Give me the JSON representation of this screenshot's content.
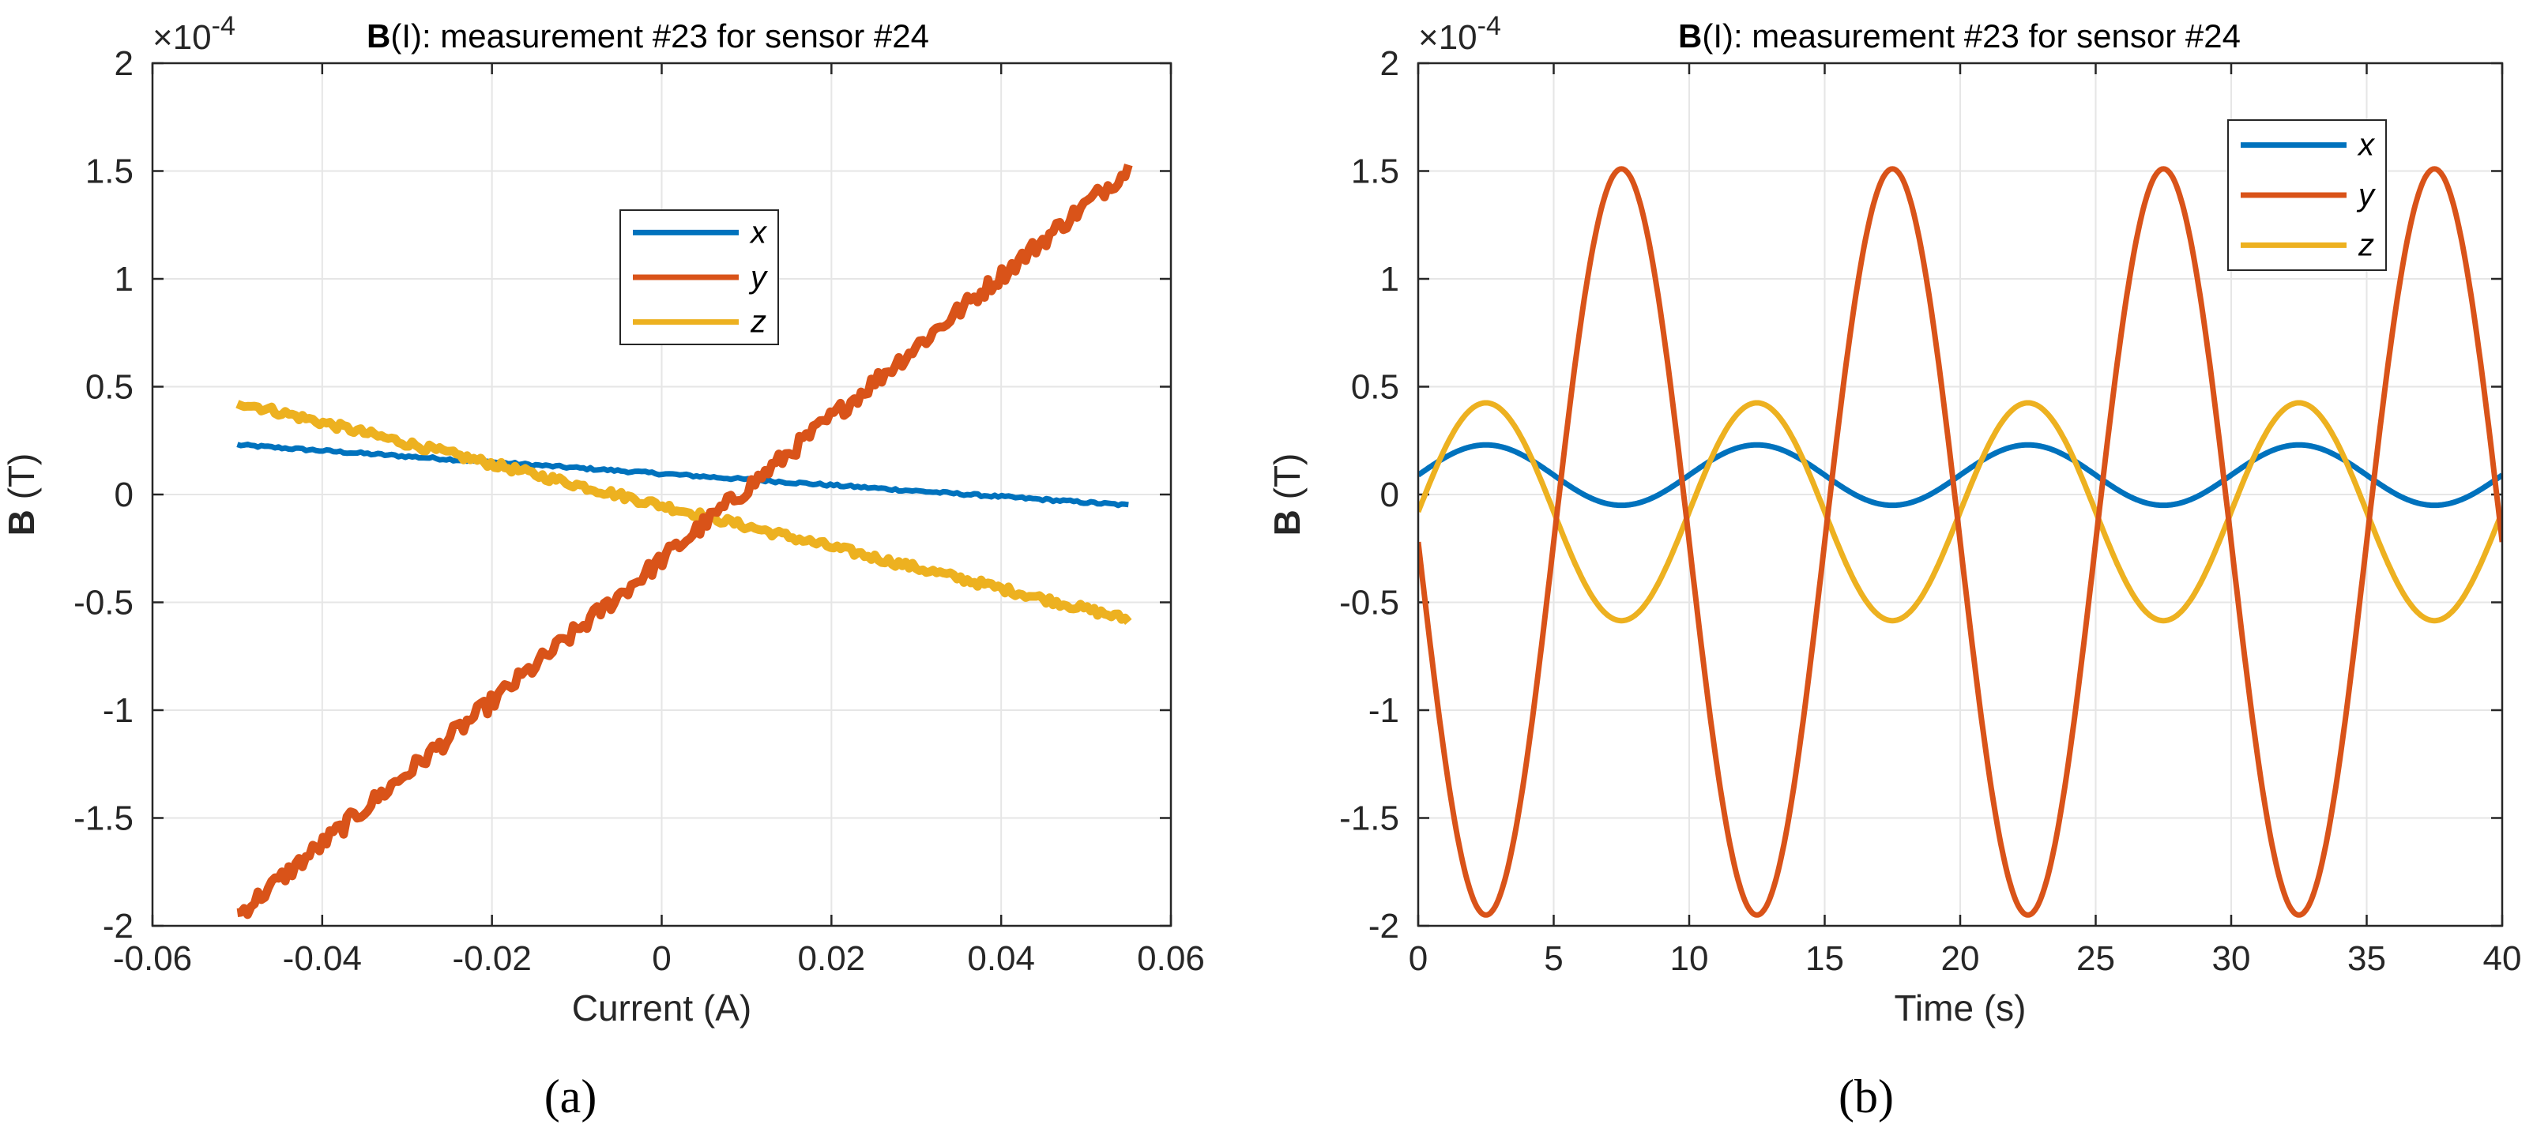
{
  "colors": {
    "x": "#0072BD",
    "y": "#D95319",
    "z": "#EDB120"
  },
  "panels": [
    "(a)",
    "(b)"
  ],
  "chart_data": [
    {
      "type": "line",
      "title_bold": "B",
      "title": "(I): measurement #23 for sensor #24",
      "xlabel": "Current (A)",
      "ylabel_bold": "B",
      "ylabel": " (T)",
      "multiplier": "×10",
      "multiplier_exp": "-4",
      "xlim": [
        -0.06,
        0.06
      ],
      "ylim": [
        -2,
        2
      ],
      "xticks": [
        -0.06,
        -0.04,
        -0.02,
        0,
        0.02,
        0.04,
        0.06
      ],
      "xtick_labels": [
        "-0.06",
        "-0.04",
        "-0.02",
        "0",
        "0.02",
        "0.04",
        "0.06"
      ],
      "yticks": [
        -2,
        -1.5,
        -1,
        -0.5,
        0,
        0.5,
        1,
        1.5,
        2
      ],
      "ytick_labels": [
        "-2",
        "-1.5",
        "-1",
        "-0.5",
        "0",
        "0.5",
        "1",
        "1.5",
        "2"
      ],
      "grid": true,
      "legend_position": "upper-middle",
      "series": [
        {
          "name": "x",
          "x_range": [
            -0.05,
            0.055
          ],
          "y_range": [
            0.23,
            -0.05
          ]
        },
        {
          "name": "y",
          "x_range": [
            -0.05,
            0.055
          ],
          "y_range": [
            -1.95,
            1.51
          ]
        },
        {
          "name": "z",
          "x_range": [
            -0.05,
            0.055
          ],
          "y_range": [
            0.43,
            -0.58
          ]
        }
      ]
    },
    {
      "type": "line",
      "title_bold": "B",
      "title": "(I): measurement #23 for sensor #24",
      "xlabel": "Time (s)",
      "ylabel_bold": "B",
      "ylabel": " (T)",
      "multiplier": "×10",
      "multiplier_exp": "-4",
      "xlim": [
        0,
        40
      ],
      "ylim": [
        -2,
        2
      ],
      "xticks": [
        0,
        5,
        10,
        15,
        20,
        25,
        30,
        35,
        40
      ],
      "xtick_labels": [
        "0",
        "5",
        "10",
        "15",
        "20",
        "25",
        "30",
        "35",
        "40"
      ],
      "yticks": [
        -2,
        -1.5,
        -1,
        -0.5,
        0,
        0.5,
        1,
        1.5,
        2
      ],
      "ytick_labels": [
        "-2",
        "-1.5",
        "-1",
        "-0.5",
        "0",
        "0.5",
        "1",
        "1.5",
        "2"
      ],
      "grid": true,
      "legend_position": "top-right",
      "period_s": 10,
      "series": [
        {
          "name": "x",
          "offset": 0.09,
          "amplitude": 0.14,
          "peak_time": 2.5
        },
        {
          "name": "y",
          "offset": -0.22,
          "amplitude": 1.73,
          "peak_time": 7.5
        },
        {
          "name": "z",
          "offset": -0.08,
          "amplitude": 0.505,
          "peak_time": 2.5
        }
      ]
    }
  ]
}
